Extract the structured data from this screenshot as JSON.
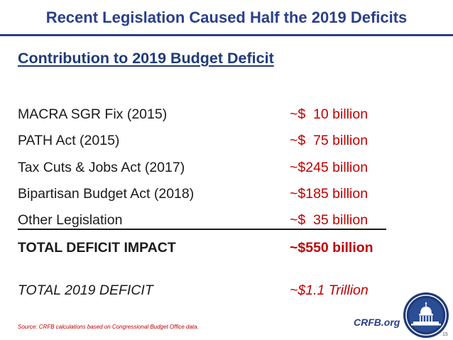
{
  "slide": {
    "title": "Recent Legislation Caused Half the 2019 Deficits",
    "subtitle": "Contribution to 2019 Budget Deficit",
    "rows": [
      {
        "label": "MACRA SGR Fix (2015)",
        "value": "~$  10 billion"
      },
      {
        "label": "PATH Act (2015)",
        "value": "~$  75 billion"
      },
      {
        "label": "Tax Cuts & Jobs Act (2017)",
        "value": "~$245 billion"
      },
      {
        "label": "Bipartisan Budget Act (2018)",
        "value": "~$185 billion"
      },
      {
        "label": "Other Legislation",
        "value": "~$  35 billion"
      }
    ],
    "total": {
      "label": "TOTAL DEFICIT IMPACT",
      "value": "~$550 billion"
    },
    "final": {
      "label": "TOTAL 2019 DEFICIT",
      "value": "~$1.1 Trillion"
    },
    "source": "Source: CRFB calculations based on Congressional Budget Office data.",
    "brand": "CRFB.org",
    "page_number": "15"
  },
  "colors": {
    "title_blue": "#2a3f8a",
    "value_red": "#c00000",
    "text": "#1a1a1a"
  },
  "icons": {
    "seal": "capitol-seal-icon"
  }
}
